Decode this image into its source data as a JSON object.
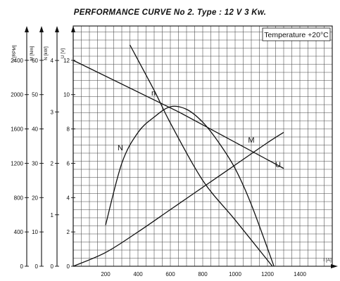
{
  "chart_data": {
    "type": "line",
    "title": "PERFORMANCE CURVE No 2.  Type : 12 V  3 Kw.",
    "annotation": "Temperature  +20°C",
    "xlabel": "I [A]",
    "x_ticks": [
      "200",
      "400",
      "600",
      "800",
      "1000",
      "1200",
      "1400"
    ],
    "xlim": [
      0,
      1600
    ],
    "grid": true,
    "axes": [
      {
        "label": "n [RPM]",
        "ticks": [
          "0",
          "400",
          "800",
          "1200",
          "1600",
          "2000",
          "2400"
        ],
        "range": [
          0,
          2800
        ]
      },
      {
        "label": "M [Nm]",
        "ticks": [
          "0",
          "10",
          "20",
          "30",
          "40",
          "50",
          "60"
        ],
        "range": [
          0,
          70
        ]
      },
      {
        "label": "N [kW]",
        "ticks": [
          "0",
          "1",
          "2",
          "3",
          "4"
        ],
        "range": [
          0,
          4.67
        ]
      },
      {
        "label": "U [V]",
        "ticks": [
          "0",
          "2",
          "4",
          "6",
          "8",
          "10",
          "12"
        ],
        "range": [
          0,
          14
        ]
      }
    ],
    "series": [
      {
        "name": "n",
        "axis": 0,
        "points": [
          [
            350,
            2580
          ],
          [
            500,
            2050
          ],
          [
            600,
            1670
          ],
          [
            800,
            1000
          ],
          [
            1000,
            540
          ],
          [
            1230,
            0
          ]
        ]
      },
      {
        "name": "N",
        "axis": 2,
        "points": [
          [
            200,
            0.8
          ],
          [
            300,
            2.0
          ],
          [
            400,
            2.6
          ],
          [
            500,
            2.9
          ],
          [
            600,
            3.1
          ],
          [
            700,
            3.05
          ],
          [
            800,
            2.8
          ],
          [
            900,
            2.4
          ],
          [
            1000,
            1.9
          ],
          [
            1100,
            1.2
          ],
          [
            1240,
            0
          ]
        ]
      },
      {
        "name": "M",
        "axis": 1,
        "points": [
          [
            0,
            0
          ],
          [
            200,
            4
          ],
          [
            400,
            10
          ],
          [
            600,
            16.5
          ],
          [
            800,
            23
          ],
          [
            1000,
            29.5
          ],
          [
            1200,
            36
          ],
          [
            1300,
            39
          ]
        ]
      },
      {
        "name": "U",
        "axis": 3,
        "points": [
          [
            0,
            12
          ],
          [
            650,
            9
          ],
          [
            1300,
            5.7
          ]
        ]
      }
    ]
  }
}
